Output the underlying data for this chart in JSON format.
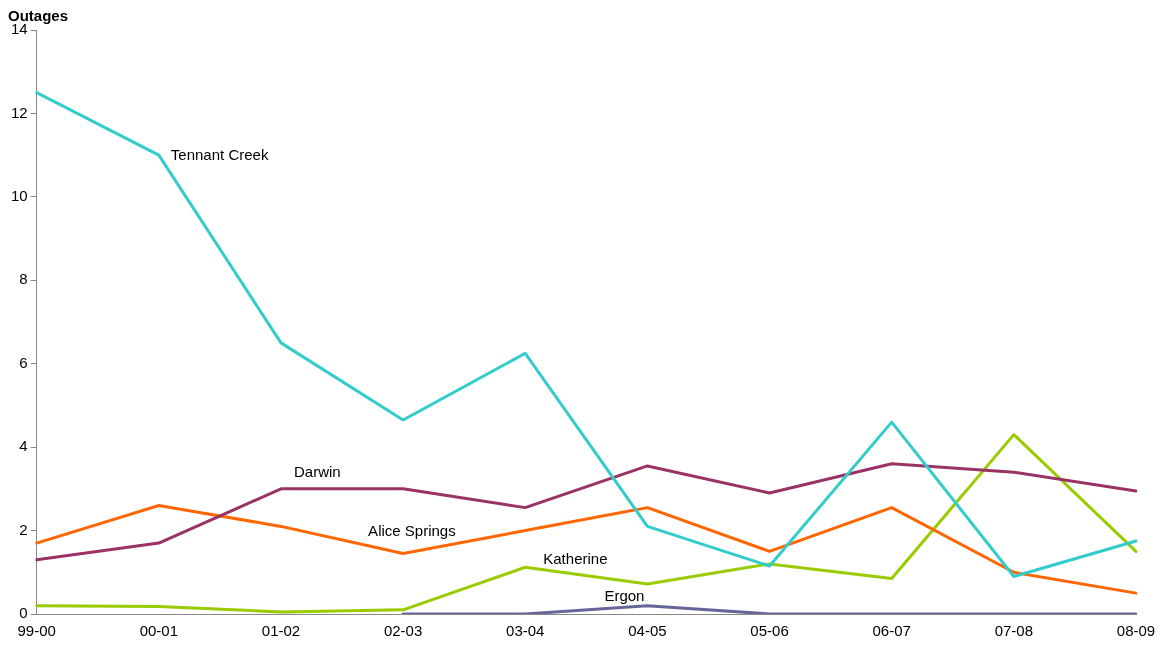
{
  "chart_data": {
    "type": "line",
    "ylabel": "Outages",
    "categories": [
      "99-00",
      "00-01",
      "01-02",
      "02-03",
      "03-04",
      "04-05",
      "05-06",
      "06-07",
      "07-08",
      "08-09"
    ],
    "ylim": [
      0,
      14
    ],
    "yticks": [
      0,
      2,
      4,
      6,
      8,
      10,
      12,
      14
    ],
    "grid": false,
    "legend": false,
    "marker": "none",
    "line_style": "solid",
    "series": [
      {
        "name": "Tennant Creek",
        "color": "#33cccc",
        "values": [
          12.5,
          11.0,
          6.5,
          4.65,
          6.25,
          2.1,
          1.15,
          4.6,
          0.9,
          1.75
        ]
      },
      {
        "name": "Darwin",
        "color": "#993366",
        "values": [
          1.3,
          1.7,
          3.0,
          3.0,
          2.55,
          3.55,
          2.9,
          3.6,
          3.4,
          2.95
        ]
      },
      {
        "name": "Alice Springs",
        "color": "#ff6600",
        "values": [
          1.7,
          2.6,
          2.1,
          1.45,
          2.0,
          2.55,
          1.5,
          2.55,
          1.0,
          0.5
        ]
      },
      {
        "name": "Katherine",
        "color": "#99cc00",
        "values": [
          0.2,
          0.18,
          0.05,
          0.1,
          1.12,
          0.72,
          1.2,
          0.85,
          4.3,
          1.5
        ]
      },
      {
        "name": "Ergon",
        "color": "#666699",
        "values": [
          null,
          null,
          null,
          0,
          0,
          0.2,
          0,
          0,
          0,
          0
        ]
      }
    ]
  }
}
